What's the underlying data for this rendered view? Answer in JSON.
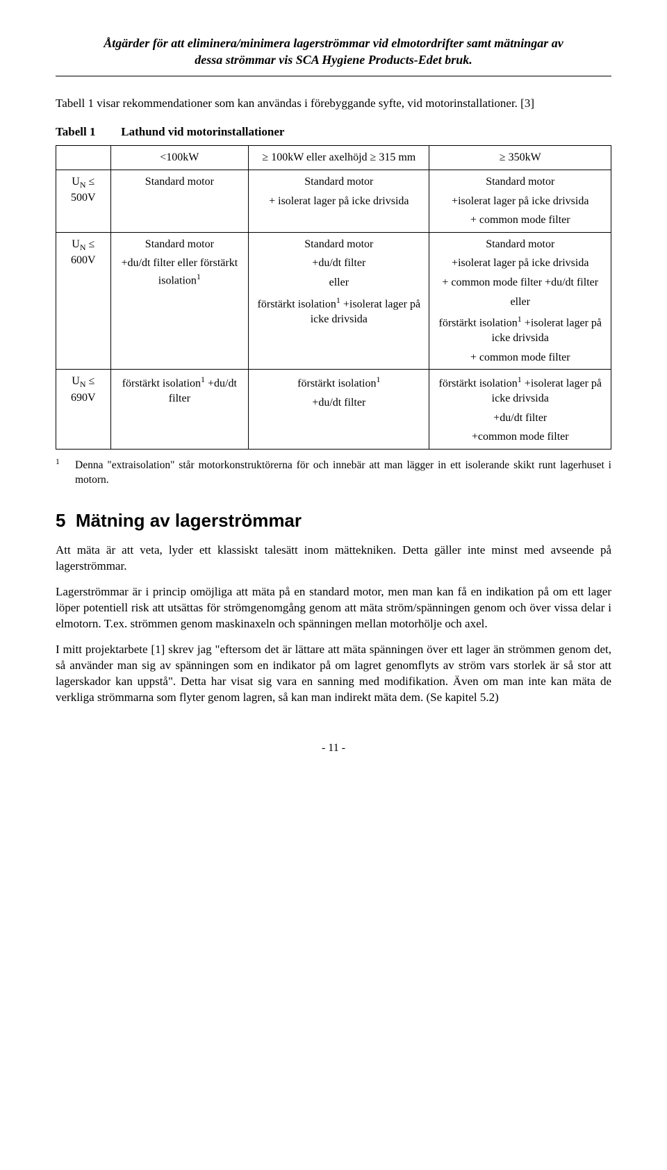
{
  "header": {
    "line1": "Åtgärder för att eliminera/minimera lagerströmmar vid elmotordrifter samt mätningar av",
    "line2": "dessa strömmar vis SCA Hygiene Products-Edet bruk."
  },
  "intro": "Tabell 1 visar rekommendationer som kan användas i förebyggande syfte, vid motorinstallationer. [3]",
  "table": {
    "caption_label": "Tabell 1",
    "caption_text": "Lathund vid motorinstallationer",
    "head": {
      "c0": "",
      "c1": "<100kW",
      "c2_pre": "≥ 100kW eller axelhöjd ≥ 315 mm",
      "c3": "≥ 350kW"
    },
    "rows": [
      {
        "c0_html": "U<span class=\"sub\">N</span> ≤ 500V",
        "c1": "Standard motor",
        "c2_html": "<div class=\"cell-block\">Standard motor</div><div class=\"cell-block\">+ isolerat lager på icke drivsida</div>",
        "c3_html": "<div class=\"cell-block\">Standard motor</div><div class=\"cell-block\">+isolerat lager på icke drivsida</div><div class=\"cell-block\">+ common mode filter</div>"
      },
      {
        "c0_html": "U<span class=\"sub\">N</span> ≤ 600V",
        "c1_html": "<div class=\"cell-block\">Standard motor</div><div class=\"cell-block\">+du/dt filter eller förstärkt isolation<span class=\"sup\">1</span></div>",
        "c2_html": "<div class=\"cell-block\">Standard motor</div><div class=\"cell-block\">+du/dt filter</div><div class=\"cell-block\">eller</div><div class=\"cell-block\">förstärkt isolation<span class=\"sup\">1</span> +isolerat lager på icke drivsida</div>",
        "c3_html": "<div class=\"cell-block\">Standard motor</div><div class=\"cell-block\">+isolerat lager på icke drivsida</div><div class=\"cell-block\">+ common mode filter +du/dt filter</div><div class=\"cell-block\">eller</div><div class=\"cell-block\">förstärkt isolation<span class=\"sup\">1</span> +isolerat lager på icke drivsida</div><div class=\"cell-block\">+ common mode filter</div>"
      },
      {
        "c0_html": "U<span class=\"sub\">N</span> ≤ 690V",
        "c1_html": "förstärkt isolation<span class=\"sup\">1</span> +du/dt filter",
        "c2_html": "<div class=\"cell-block\">förstärkt isolation<span class=\"sup\">1</span></div><div class=\"cell-block\">+du/dt filter</div>",
        "c3_html": "<div class=\"cell-block\">förstärkt isolation<span class=\"sup\">1</span> +isolerat lager på icke drivsida</div><div class=\"cell-block\">+du/dt filter</div><div class=\"cell-block\">+common mode filter</div>"
      }
    ]
  },
  "footnote": {
    "mark": "1",
    "text": "Denna \"extraisolation\" står motorkonstruktörerna för och innebär att man lägger in ett isolerande skikt runt lagerhuset i motorn."
  },
  "section": {
    "number": "5",
    "title": "Mätning av lagerströmmar"
  },
  "paragraphs": {
    "p1": "Att mäta är att veta, lyder ett klassiskt talesätt inom mättekniken. Detta gäller inte minst med avseende på lagerströmmar.",
    "p2": "Lagerströmmar är i princip omöjliga att mäta på en standard motor, men man kan få en indikation på om ett lager löper potentiell risk att utsättas för strömgenomgång genom att mäta ström/spänningen genom och över vissa delar i elmotorn. T.ex. strömmen genom maskinaxeln och spänningen mellan motorhölje och axel.",
    "p3": "I mitt projektarbete [1] skrev jag \"eftersom det är lättare att mäta spänningen över ett lager än strömmen genom det, så använder man sig av spänningen som en indikator på om lagret genomflyts av ström vars storlek är så stor att lagerskador kan uppstå\". Detta har visat sig vara en sanning med modifikation. Även om man inte kan mäta de verkliga strömmarna som flyter genom lagren, så kan man indirekt mäta dem. (Se kapitel 5.2)"
  },
  "page_number": "- 11 -"
}
